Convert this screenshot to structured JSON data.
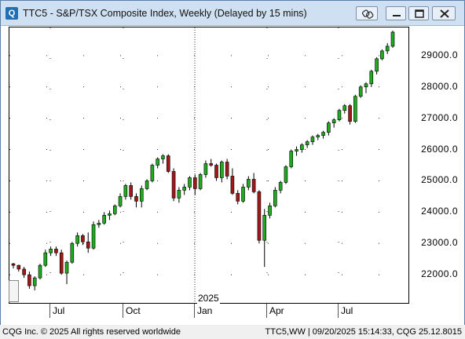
{
  "window": {
    "title": "TTC5 - S&P/TSX Composite Index, Weekly (Delayed by 15 mins)",
    "app_icon_text": "Q"
  },
  "chart_data": {
    "type": "candlestick",
    "x_labels": [
      "Jul",
      "Oct",
      "Jan",
      "Apr",
      "Jul"
    ],
    "year_label": "2025",
    "yticks": [
      "22000.0",
      "23000.0",
      "24000.0",
      "25000.0",
      "26000.0",
      "27000.0",
      "28000.0",
      "29000.0"
    ],
    "ylim": [
      21100,
      29900
    ],
    "grid": true,
    "up_color": "#1faa1f",
    "down_color": "#a01818",
    "candles": [
      [
        22350,
        22380,
        22200,
        22300
      ],
      [
        22300,
        22320,
        22100,
        22180
      ],
      [
        22180,
        22250,
        21900,
        22000
      ],
      [
        22000,
        22100,
        21550,
        21650
      ],
      [
        21650,
        21950,
        21500,
        21900
      ],
      [
        21900,
        22350,
        21850,
        22300
      ],
      [
        22300,
        22800,
        22250,
        22700
      ],
      [
        22700,
        22900,
        22600,
        22820
      ],
      [
        22820,
        22900,
        22600,
        22700
      ],
      [
        22700,
        22800,
        22000,
        22050
      ],
      [
        22050,
        22450,
        21700,
        22400
      ],
      [
        22400,
        23050,
        22350,
        23000
      ],
      [
        23000,
        23350,
        22900,
        23250
      ],
      [
        23250,
        23300,
        22950,
        23050
      ],
      [
        23050,
        23350,
        22700,
        22850
      ],
      [
        22850,
        23700,
        22800,
        23600
      ],
      [
        23600,
        23750,
        23500,
        23650
      ],
      [
        23650,
        24000,
        23600,
        23900
      ],
      [
        23900,
        24050,
        23750,
        23950
      ],
      [
        23950,
        24250,
        23900,
        24200
      ],
      [
        24200,
        24600,
        24150,
        24500
      ],
      [
        24500,
        24900,
        24400,
        24850
      ],
      [
        24850,
        24950,
        24400,
        24500
      ],
      [
        24500,
        24600,
        24150,
        24350
      ],
      [
        24350,
        24850,
        24150,
        24750
      ],
      [
        24750,
        25050,
        24700,
        25000
      ],
      [
        25000,
        25550,
        24950,
        25500
      ],
      [
        25500,
        25750,
        25400,
        25700
      ],
      [
        25700,
        25850,
        25550,
        25800
      ],
      [
        25800,
        25850,
        25250,
        25300
      ],
      [
        25300,
        25400,
        24350,
        24450
      ],
      [
        24450,
        24800,
        24300,
        24700
      ],
      [
        24700,
        24900,
        24550,
        24800
      ],
      [
        24800,
        25150,
        24700,
        25100
      ],
      [
        25100,
        25200,
        24550,
        24750
      ],
      [
        24750,
        25250,
        24700,
        25200
      ],
      [
        25200,
        25650,
        25100,
        25550
      ],
      [
        25550,
        25700,
        25450,
        25500
      ],
      [
        25500,
        25550,
        25000,
        25100
      ],
      [
        25100,
        25650,
        24950,
        25600
      ],
      [
        25600,
        25700,
        25050,
        25150
      ],
      [
        25150,
        25400,
        24550,
        24600
      ],
      [
        24600,
        24700,
        24250,
        24350
      ],
      [
        24350,
        24900,
        24300,
        24800
      ],
      [
        24800,
        25150,
        24700,
        25050
      ],
      [
        25050,
        25250,
        24600,
        24650
      ],
      [
        24650,
        24700,
        23000,
        23100
      ],
      [
        23100,
        24100,
        22250,
        23900
      ],
      [
        23900,
        24300,
        23800,
        24200
      ],
      [
        24200,
        24800,
        24150,
        24700
      ],
      [
        24700,
        25000,
        24600,
        24950
      ],
      [
        24950,
        25500,
        24900,
        25450
      ],
      [
        25450,
        26000,
        25400,
        25950
      ],
      [
        25950,
        26100,
        25800,
        26000
      ],
      [
        26000,
        26200,
        25900,
        26150
      ],
      [
        26150,
        26300,
        26050,
        26250
      ],
      [
        26250,
        26450,
        26150,
        26400
      ],
      [
        26400,
        26500,
        26300,
        26450
      ],
      [
        26450,
        26600,
        26350,
        26550
      ],
      [
        26550,
        26900,
        26450,
        26850
      ],
      [
        26850,
        27000,
        26700,
        26950
      ],
      [
        26950,
        27300,
        26900,
        27250
      ],
      [
        27250,
        27450,
        27150,
        27400
      ],
      [
        27400,
        27450,
        26800,
        26900
      ],
      [
        26900,
        27750,
        26850,
        27700
      ],
      [
        27700,
        28050,
        27650,
        28000
      ],
      [
        28000,
        28150,
        27800,
        28100
      ],
      [
        28100,
        28550,
        28000,
        28500
      ],
      [
        28500,
        28950,
        28400,
        28900
      ],
      [
        28900,
        29200,
        28850,
        29150
      ],
      [
        29150,
        29400,
        29050,
        29300
      ],
      [
        29300,
        29800,
        29250,
        29750
      ]
    ]
  },
  "statusbar": {
    "left": "CQG Inc. © 2025 All rights reserved worldwide",
    "right": "TTC5,WW | 09/20/2025 15:14:33, CQG 25.12.8015"
  }
}
